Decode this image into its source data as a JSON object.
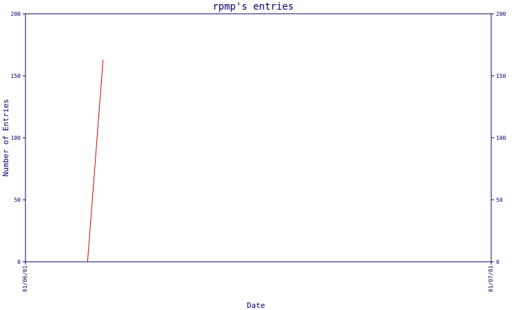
{
  "chart_data": {
    "type": "line",
    "title": "rpmp's entries",
    "xlabel": "Date",
    "ylabel": "Number of Entries",
    "x_ticks": [
      "01/06/01",
      "01/07/01"
    ],
    "xlim": [
      "2001-06-01",
      "2001-07-01"
    ],
    "ylim": [
      0,
      200
    ],
    "y_ticks": [
      0,
      50,
      100,
      150,
      200
    ],
    "y_ticks_right": [
      0,
      50,
      100,
      150,
      200
    ],
    "series": [
      {
        "color": "#cc0000",
        "points": [
          {
            "x": "2001-06-05",
            "y": 0
          },
          {
            "x": "2001-06-06",
            "y": 163
          }
        ]
      }
    ],
    "grid": false,
    "legend": "none",
    "colors": {
      "axis": "#000066",
      "text": "#000066",
      "series": "#cc0000"
    }
  }
}
